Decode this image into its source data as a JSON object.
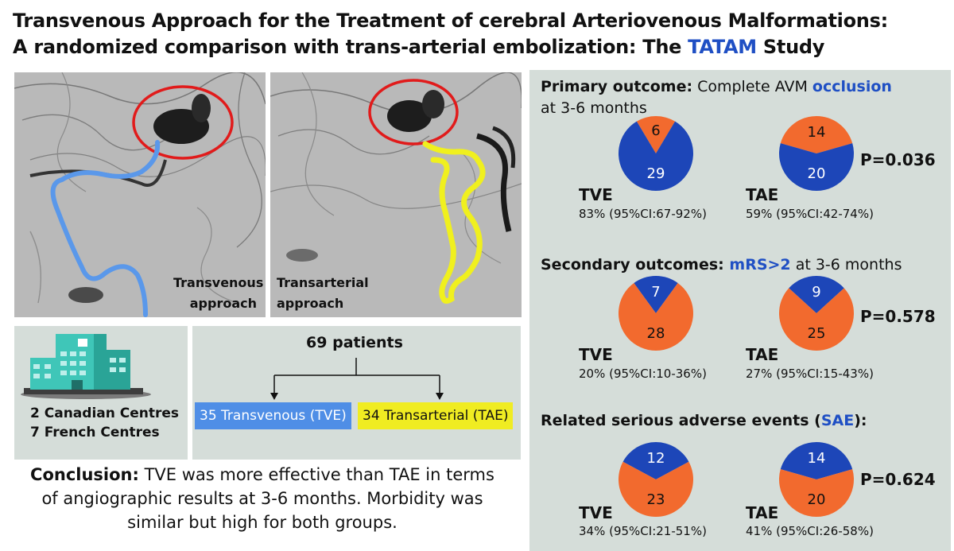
{
  "title": {
    "line1": "Transvenous Approach for the Treatment of cerebral Arteriovenous Malformations:",
    "line2_prefix": "A randomized comparison with trans-arterial embolization: The ",
    "line2_highlight": "TATAM",
    "line2_suffix": " Study"
  },
  "images": {
    "left_caption_line1": "Transvenous",
    "left_caption_line2": "approach",
    "right_caption_line1": "Transarterial",
    "right_caption_line2": "approach"
  },
  "centres": {
    "line1": "2 Canadian Centres",
    "line2": "7 French Centres"
  },
  "flow": {
    "total": "69 patients",
    "tve_arm": "35 Transvenous (TVE)",
    "tae_arm": "34 Transarterial (TAE)"
  },
  "conclusion": {
    "label": "Conclusion:",
    "text": "  TVE was more effective than TAE in terms of angiographic results at 3-6 months. Morbidity was similar but high for both groups."
  },
  "colors": {
    "blue": "#1d46b8",
    "orange": "#f26a2e",
    "title_highlight": "#1f4fc4",
    "panel_bg": "#d5ddd9",
    "tve_bar": "#4f8ee6",
    "tae_bar": "#f0ec22",
    "catheter_blue": "#5a98ea",
    "catheter_yellow": "#f0f01e",
    "circle_red": "#e11b1b"
  },
  "chart_data": [
    {
      "type": "pie",
      "section": "primary",
      "group": "TVE",
      "slices": [
        {
          "label": "6",
          "value": 6,
          "color": "orange"
        },
        {
          "label": "29",
          "value": 29,
          "color": "blue"
        }
      ],
      "stat": "83% (95%CI:67-92%)"
    },
    {
      "type": "pie",
      "section": "primary",
      "group": "TAE",
      "slices": [
        {
          "label": "14",
          "value": 14,
          "color": "orange"
        },
        {
          "label": "20",
          "value": 20,
          "color": "blue"
        }
      ],
      "stat": "59% (95%CI:42-74%)"
    },
    {
      "type": "pie",
      "section": "secondary",
      "group": "TVE",
      "slices": [
        {
          "label": "7",
          "value": 7,
          "color": "blue"
        },
        {
          "label": "28",
          "value": 28,
          "color": "orange"
        }
      ],
      "stat": "20% (95%CI:10-36%)"
    },
    {
      "type": "pie",
      "section": "secondary",
      "group": "TAE",
      "slices": [
        {
          "label": "9",
          "value": 9,
          "color": "blue"
        },
        {
          "label": "25",
          "value": 25,
          "color": "orange"
        }
      ],
      "stat": "27% (95%CI:15-43%)"
    },
    {
      "type": "pie",
      "section": "sae",
      "group": "TVE",
      "slices": [
        {
          "label": "12",
          "value": 12,
          "color": "blue"
        },
        {
          "label": "23",
          "value": 23,
          "color": "orange"
        }
      ],
      "stat": "34% (95%CI:21-51%)"
    },
    {
      "type": "pie",
      "section": "sae",
      "group": "TAE",
      "slices": [
        {
          "label": "14",
          "value": 14,
          "color": "blue"
        },
        {
          "label": "20",
          "value": 20,
          "color": "orange"
        }
      ],
      "stat": "41% (95%CI:26-58%)"
    }
  ],
  "sections": {
    "primary": {
      "title_bold": "Primary outcome:",
      "title_text": " Complete AVM ",
      "title_highlight": "occlusion",
      "title_line2": "at 3-6 months",
      "pvalue": "P=0.036"
    },
    "secondary": {
      "title_bold": "Secondary outcomes:",
      "title_highlight": " mRS>2",
      "title_text": " at 3-6 months",
      "pvalue": "P=0.578"
    },
    "sae": {
      "title_bold": "Related serious adverse events (",
      "title_highlight": "SAE",
      "title_bold_end": "):",
      "pvalue": "P=0.624"
    }
  }
}
